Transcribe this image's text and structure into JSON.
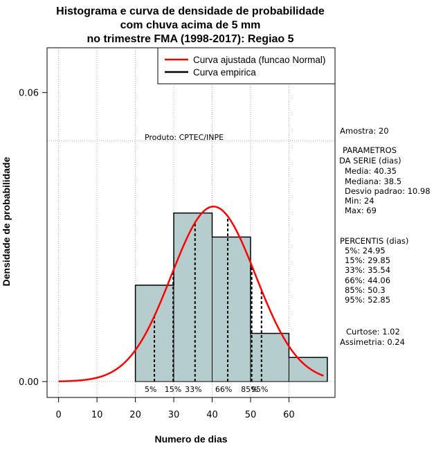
{
  "chart_data": {
    "type": "bar",
    "title": [
      "Histograma e curva de densidade de probabilidade",
      "com chuva acima de 5 mm",
      "no trimestre FMA (1998-2017): Regiao 5"
    ],
    "xlabel": "Numero de dias",
    "ylabel": "Densidade de probabilidade",
    "xlim": [
      -3,
      72
    ],
    "ylim": [
      -0.0033,
      0.0693
    ],
    "x_ticks": [
      "0",
      "10",
      "20",
      "30",
      "40",
      "50",
      "60"
    ],
    "x_tick_values": [
      0,
      10,
      20,
      30,
      40,
      50,
      60
    ],
    "y_ticks": [
      "0.00",
      "0.06"
    ],
    "y_tick_values": [
      0.0,
      0.06
    ],
    "grid": true,
    "bar_color": "#b5cdcd",
    "histogram": {
      "bin_edges": [
        20,
        30,
        40,
        50,
        60,
        70
      ],
      "densities": [
        0.02,
        0.035,
        0.03,
        0.01,
        0.005
      ]
    },
    "normal_curve": {
      "name": "Curva ajustada (funcao Normal)",
      "mean": 40.35,
      "sd": 10.98,
      "color": "#ff0000",
      "x_range": [
        0,
        69
      ]
    },
    "empirical_curve": {
      "name": "Curva empirica",
      "color": "#000000"
    },
    "percentile_lines": [
      {
        "label": "5%",
        "x": 24.95,
        "label_x": 24.0
      },
      {
        "label": "15%",
        "x": 29.85,
        "label_x": 29.8
      },
      {
        "label": "33%",
        "x": 35.54,
        "label_x": 35.1
      },
      {
        "label": "66%",
        "x": 44.06,
        "label_x": 43.0
      },
      {
        "label": "85%",
        "x": 50.3,
        "label_x": 49.7
      },
      {
        "label": "95%",
        "x": 52.85,
        "label_x": 52.4
      }
    ],
    "legend_position": "top-right",
    "annotation": "Produto: CPTEC/INPE"
  },
  "side_panel": {
    "amostra": "Amostra: 20",
    "parametros_title": "PARAMETROS",
    "parametros_subtitle": "DA SERIE (dias)",
    "media": "Media: 40.35",
    "mediana": "Mediana: 38.5",
    "desvio": "Desvio padrao: 10.98",
    "min": "Min: 24",
    "max": "Max: 69",
    "percentis_title": "PERCENTIS (dias)",
    "p5": "5%: 24.95",
    "p15": "15%: 29.85",
    "p33": "33%: 35.54",
    "p66": "66%: 44.06",
    "p85": "85%: 50.3",
    "p95": "95%: 52.85",
    "curtose": "Curtose: 1.02",
    "assimetria": "Assimetria: 0.24"
  }
}
